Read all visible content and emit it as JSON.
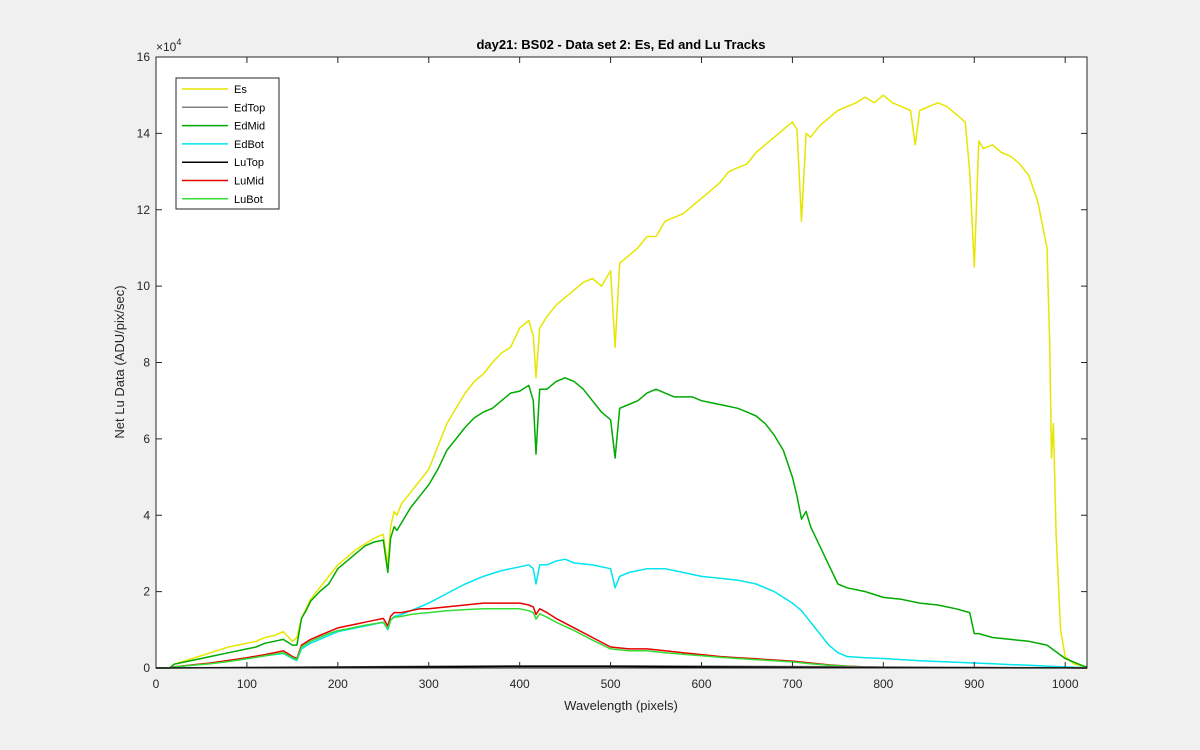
{
  "chart_data": {
    "type": "line",
    "title": "day21: BS02 - Data set 2: Es, Ed and Lu Tracks",
    "xlabel": "Wavelength (pixels)",
    "ylabel": "Net Lu Data (ADU/pix/sec)",
    "exponent_base": "×10",
    "exponent_power": "4",
    "xlim": [
      0,
      1024
    ],
    "ylim": [
      0,
      160000
    ],
    "xticks": [
      0,
      100,
      200,
      300,
      400,
      500,
      600,
      700,
      800,
      900,
      1000
    ],
    "yticks": [
      0,
      20000,
      40000,
      60000,
      80000,
      100000,
      120000,
      140000,
      160000
    ],
    "ytick_labels": [
      "0",
      "2",
      "4",
      "6",
      "8",
      "10",
      "12",
      "14",
      "16"
    ],
    "grid": false,
    "legend_position": "top-left",
    "series": [
      {
        "name": "Es",
        "color": "#e6e600",
        "x": [
          0,
          15,
          20,
          40,
          60,
          80,
          100,
          110,
          120,
          130,
          140,
          150,
          155,
          160,
          165,
          170,
          180,
          190,
          200,
          210,
          220,
          230,
          240,
          250,
          255,
          258,
          262,
          265,
          270,
          280,
          290,
          300,
          310,
          320,
          330,
          340,
          350,
          360,
          370,
          380,
          390,
          400,
          410,
          415,
          418,
          422,
          430,
          440,
          450,
          460,
          470,
          480,
          490,
          500,
          505,
          510,
          520,
          530,
          540,
          550,
          560,
          570,
          580,
          590,
          600,
          610,
          620,
          630,
          640,
          650,
          660,
          670,
          680,
          690,
          700,
          705,
          710,
          715,
          720,
          730,
          740,
          750,
          760,
          770,
          780,
          790,
          800,
          810,
          820,
          830,
          835,
          840,
          850,
          860,
          870,
          880,
          890,
          895,
          900,
          905,
          910,
          920,
          930,
          940,
          950,
          960,
          970,
          980,
          983,
          985,
          987,
          990,
          995,
          1000,
          1010,
          1020,
          1024
        ],
        "y": [
          0,
          0,
          1000,
          2500,
          4000,
          5500,
          6500,
          7000,
          8000,
          8500,
          9500,
          7000,
          8000,
          13000,
          15500,
          18000,
          21000,
          24000,
          27000,
          29000,
          31000,
          32500,
          34000,
          35000,
          27000,
          37000,
          41000,
          40000,
          43000,
          46000,
          49000,
          52000,
          58000,
          64000,
          68000,
          72000,
          75000,
          77000,
          80000,
          82500,
          84000,
          89000,
          91000,
          87000,
          76000,
          89000,
          92000,
          95000,
          97000,
          99000,
          101000,
          102000,
          100000,
          104000,
          84000,
          106000,
          108000,
          110000,
          113000,
          113000,
          117000,
          118000,
          119000,
          121000,
          123000,
          125000,
          127000,
          130000,
          131000,
          132000,
          135000,
          137000,
          139000,
          141000,
          143000,
          141000,
          117000,
          140000,
          139000,
          142000,
          144000,
          146000,
          147000,
          148000,
          149500,
          148000,
          150000,
          148000,
          147000,
          146000,
          137000,
          146000,
          147000,
          148000,
          147000,
          145000,
          143000,
          130000,
          105000,
          138000,
          136000,
          137000,
          135000,
          134000,
          132000,
          129000,
          122000,
          110000,
          85000,
          55000,
          64000,
          35000,
          10000,
          3000,
          1000,
          500,
          300
        ]
      },
      {
        "name": "EdTop",
        "color": "#808080",
        "x": [
          0,
          100,
          200,
          300,
          400,
          500,
          600,
          700,
          800,
          900,
          1000,
          1024
        ],
        "y": [
          0,
          150,
          300,
          450,
          600,
          600,
          500,
          400,
          250,
          150,
          50,
          0
        ]
      },
      {
        "name": "EdMid",
        "color": "#00aa00",
        "x": [
          0,
          15,
          20,
          40,
          60,
          80,
          100,
          110,
          120,
          130,
          140,
          150,
          155,
          160,
          165,
          170,
          180,
          190,
          200,
          210,
          220,
          230,
          240,
          250,
          255,
          258,
          262,
          265,
          270,
          280,
          290,
          300,
          310,
          320,
          330,
          340,
          350,
          360,
          370,
          380,
          390,
          400,
          410,
          415,
          418,
          422,
          430,
          440,
          450,
          460,
          470,
          480,
          490,
          500,
          505,
          510,
          520,
          530,
          540,
          550,
          560,
          570,
          580,
          590,
          600,
          610,
          620,
          630,
          640,
          650,
          660,
          670,
          680,
          690,
          700,
          705,
          710,
          715,
          720,
          730,
          740,
          750,
          760,
          780,
          800,
          820,
          840,
          860,
          880,
          895,
          900,
          905,
          920,
          940,
          960,
          980,
          1000,
          1010,
          1020,
          1024
        ],
        "y": [
          0,
          0,
          1000,
          2000,
          3000,
          4000,
          5000,
          5500,
          6500,
          7000,
          7500,
          6000,
          6000,
          13000,
          15000,
          17500,
          20000,
          22000,
          26000,
          28000,
          30000,
          32000,
          33000,
          33500,
          25000,
          34000,
          37000,
          36000,
          38000,
          42000,
          45000,
          48000,
          52000,
          57000,
          60000,
          63000,
          65500,
          67000,
          68000,
          70000,
          72000,
          72500,
          74000,
          70000,
          56000,
          73000,
          73000,
          75000,
          76000,
          75000,
          73000,
          70000,
          67000,
          65000,
          55000,
          68000,
          69000,
          70000,
          72000,
          73000,
          72000,
          71000,
          71000,
          71000,
          70000,
          69500,
          69000,
          68500,
          68000,
          67000,
          66000,
          64000,
          61000,
          57000,
          50000,
          45000,
          39000,
          41000,
          37000,
          32000,
          27000,
          22000,
          21000,
          20000,
          18500,
          18000,
          17000,
          16500,
          15500,
          14500,
          9000,
          9000,
          8000,
          7500,
          7000,
          6000,
          2500,
          1500,
          500,
          300
        ]
      },
      {
        "name": "EdBot",
        "color": "#00e5ee",
        "x": [
          0,
          15,
          20,
          40,
          60,
          80,
          100,
          120,
          140,
          150,
          155,
          160,
          170,
          180,
          190,
          200,
          210,
          220,
          230,
          240,
          250,
          255,
          258,
          262,
          270,
          280,
          290,
          300,
          320,
          340,
          360,
          380,
          400,
          410,
          415,
          418,
          422,
          430,
          440,
          450,
          460,
          480,
          500,
          505,
          510,
          520,
          540,
          560,
          580,
          600,
          620,
          640,
          660,
          680,
          700,
          710,
          720,
          730,
          740,
          750,
          760,
          780,
          800,
          820,
          840,
          860,
          880,
          900,
          920,
          940,
          960,
          980,
          1000,
          1020,
          1024
        ],
        "y": [
          0,
          0,
          300,
          700,
          1200,
          1800,
          2500,
          3200,
          3800,
          2500,
          2000,
          5000,
          6500,
          7500,
          8500,
          9500,
          10000,
          10500,
          11000,
          11500,
          12000,
          10000,
          12500,
          13500,
          14000,
          15000,
          16000,
          17000,
          19500,
          22000,
          24000,
          25500,
          26500,
          27000,
          26000,
          22000,
          27000,
          27000,
          28000,
          28500,
          27500,
          27000,
          26000,
          21000,
          24000,
          25000,
          26000,
          26000,
          25000,
          24000,
          23500,
          23000,
          22000,
          20000,
          17000,
          15000,
          12000,
          9000,
          6000,
          4000,
          3000,
          2700,
          2500,
          2200,
          1900,
          1700,
          1500,
          1300,
          1100,
          900,
          700,
          500,
          300,
          100,
          50
        ]
      },
      {
        "name": "LuTop",
        "color": "#000000",
        "x": [
          0,
          100,
          200,
          300,
          400,
          500,
          600,
          700,
          800,
          900,
          1000,
          1024
        ],
        "y": [
          0,
          100,
          200,
          300,
          400,
          400,
          300,
          200,
          100,
          50,
          20,
          0
        ]
      },
      {
        "name": "LuMid",
        "color": "#e60000",
        "x": [
          0,
          15,
          20,
          40,
          60,
          80,
          100,
          120,
          140,
          150,
          155,
          160,
          170,
          180,
          190,
          200,
          210,
          220,
          230,
          240,
          250,
          255,
          258,
          262,
          270,
          280,
          290,
          300,
          320,
          340,
          360,
          380,
          400,
          410,
          415,
          418,
          422,
          430,
          440,
          460,
          480,
          500,
          520,
          540,
          560,
          580,
          600,
          620,
          640,
          660,
          680,
          700,
          720,
          740,
          760,
          780,
          800,
          850,
          900,
          950,
          1000,
          1024
        ],
        "y": [
          0,
          0,
          300,
          800,
          1300,
          2000,
          2700,
          3500,
          4500,
          3000,
          2500,
          6000,
          7500,
          8500,
          9500,
          10500,
          11000,
          11500,
          12000,
          12500,
          13000,
          11000,
          13500,
          14500,
          14500,
          15000,
          15500,
          15500,
          16000,
          16500,
          17000,
          17000,
          17000,
          16500,
          16000,
          14000,
          15500,
          14500,
          13000,
          10500,
          8000,
          5500,
          5000,
          5000,
          4500,
          4000,
          3500,
          3000,
          2700,
          2400,
          2100,
          1800,
          1300,
          800,
          500,
          300,
          200,
          150,
          100,
          80,
          50,
          30
        ]
      },
      {
        "name": "LuBot",
        "color": "#33dd33",
        "x": [
          0,
          15,
          20,
          40,
          60,
          80,
          100,
          120,
          140,
          150,
          155,
          160,
          170,
          180,
          190,
          200,
          210,
          220,
          230,
          240,
          250,
          255,
          258,
          262,
          270,
          280,
          290,
          300,
          320,
          340,
          360,
          380,
          400,
          410,
          415,
          418,
          422,
          430,
          440,
          460,
          480,
          500,
          520,
          540,
          560,
          580,
          600,
          620,
          640,
          660,
          680,
          700,
          720,
          740,
          760,
          780,
          800,
          850,
          900,
          950,
          1000,
          1024
        ],
        "y": [
          0,
          0,
          250,
          700,
          1100,
          1700,
          2400,
          3200,
          4000,
          2700,
          2200,
          5500,
          7000,
          8000,
          9000,
          9800,
          10200,
          10700,
          11200,
          11600,
          12000,
          10300,
          12500,
          13300,
          13500,
          14000,
          14300,
          14500,
          15000,
          15300,
          15500,
          15500,
          15500,
          15000,
          14500,
          12800,
          14200,
          13300,
          12000,
          9800,
          7300,
          5000,
          4500,
          4500,
          4000,
          3600,
          3200,
          2800,
          2500,
          2200,
          1900,
          1600,
          1100,
          700,
          450,
          250,
          150,
          100,
          80,
          60,
          40,
          20
        ]
      }
    ]
  }
}
